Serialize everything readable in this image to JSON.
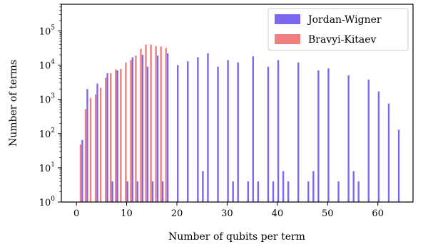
{
  "chart_data": {
    "type": "bar",
    "xlabel": "Number of qubits per term",
    "ylabel": "Number of terms",
    "xlim": [
      -3,
      67
    ],
    "ylim": [
      1,
      600000
    ],
    "yscale": "log",
    "xticks": [
      0,
      10,
      20,
      30,
      40,
      50,
      60
    ],
    "yticks": [
      {
        "value": 1,
        "exp": "0"
      },
      {
        "value": 10,
        "exp": "1"
      },
      {
        "value": 100,
        "exp": "2"
      },
      {
        "value": 1000,
        "exp": "3"
      },
      {
        "value": 10000,
        "exp": "4"
      },
      {
        "value": 100000,
        "exp": "5"
      }
    ],
    "ytick_base": "10",
    "grid": false,
    "legend_position": "top-right",
    "series": [
      {
        "name": "Jordan-Wigner",
        "color": "#7b68ee",
        "x": [
          1,
          2,
          4,
          6,
          7,
          8,
          10,
          11,
          12,
          13,
          14,
          15,
          16,
          17,
          18,
          20,
          22,
          24,
          25,
          26,
          28,
          30,
          31,
          32,
          34,
          35,
          36,
          38,
          39,
          40,
          41,
          42,
          44,
          46,
          47,
          48,
          50,
          52,
          54,
          55,
          56,
          58,
          60,
          62,
          64
        ],
        "y": [
          65,
          2000,
          2900,
          5800,
          4,
          7000,
          4,
          17000,
          4,
          20000,
          9000,
          4,
          19000,
          4,
          22000,
          10000,
          13000,
          17000,
          8,
          22000,
          9000,
          14000,
          4,
          12000,
          4,
          18000,
          4,
          9000,
          4,
          14000,
          8,
          4,
          12000,
          4,
          8,
          7000,
          8000,
          4,
          5000,
          8,
          4,
          3800,
          1700,
          750,
          130
        ]
      },
      {
        "name": "Bravyi-Kitaev",
        "color": "#f08080",
        "x": [
          1,
          2,
          3,
          4,
          5,
          6,
          7,
          8,
          9,
          10,
          11,
          12,
          13,
          14,
          15,
          16,
          17,
          18
        ],
        "y": [
          48,
          520,
          1100,
          1400,
          2200,
          4300,
          5800,
          7500,
          7700,
          12000,
          14000,
          19000,
          30000,
          40000,
          40000,
          36000,
          35000,
          32000
        ]
      }
    ]
  }
}
